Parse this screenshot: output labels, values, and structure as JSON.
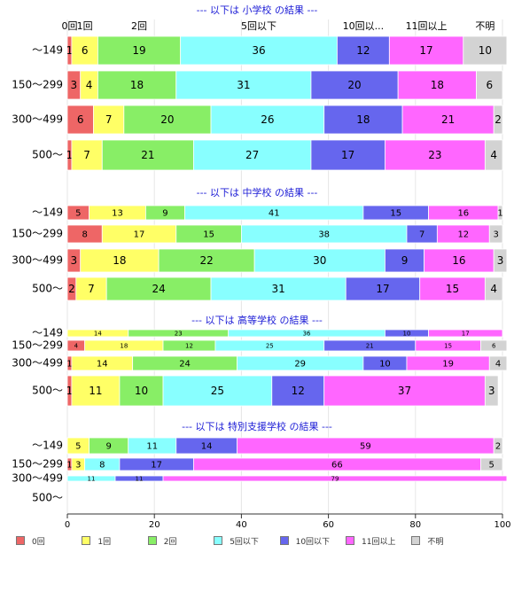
{
  "chart_data": {
    "type": "bar",
    "orientation": "horizontal",
    "stacked": true,
    "xlim": [
      0,
      100
    ],
    "x_ticks": [
      "0",
      "20",
      "40",
      "60",
      "80",
      "100"
    ],
    "legend_position": "bottom",
    "categories": [
      "0回",
      "1回",
      "2回",
      "5回以下",
      "10回以下",
      "11回以上",
      "不明"
    ],
    "colors": [
      "#ee6666",
      "#ffff66",
      "#88ee66",
      "#88ffff",
      "#6666ee",
      "#ff66ff",
      "#d3d3d3"
    ],
    "top_labels": [
      "0回",
      "1回",
      "2回",
      "5回以下",
      "10回以...",
      "11回以上",
      "不明"
    ],
    "panels": [
      {
        "title": "--- 以下は 小学校 の結果 ---",
        "rows": [
          {
            "label": "～149",
            "values": [
              1,
              6,
              19,
              36,
              12,
              17,
              10
            ]
          },
          {
            "label": "150～299",
            "values": [
              3,
              4,
              18,
              31,
              20,
              18,
              6
            ]
          },
          {
            "label": "300～499",
            "values": [
              6,
              7,
              20,
              26,
              18,
              21,
              2
            ]
          },
          {
            "label": "500～",
            "values": [
              1,
              7,
              21,
              27,
              17,
              23,
              4
            ]
          }
        ]
      },
      {
        "title": "--- 以下は 中学校 の結果 ---",
        "rows": [
          {
            "label": "～149",
            "values": [
              5,
              13,
              9,
              41,
              15,
              16,
              1
            ]
          },
          {
            "label": "150～299",
            "values": [
              8,
              17,
              15,
              38,
              7,
              12,
              3
            ]
          },
          {
            "label": "300～499",
            "values": [
              3,
              18,
              22,
              30,
              9,
              16,
              3
            ]
          },
          {
            "label": "500～",
            "values": [
              2,
              7,
              24,
              31,
              17,
              15,
              4
            ]
          }
        ]
      },
      {
        "title": "--- 以下は 高等学校 の結果 ---",
        "rows": [
          {
            "label": "～149",
            "values": [
              0,
              14,
              23,
              36,
              10,
              17,
              0
            ]
          },
          {
            "label": "150～299",
            "values": [
              4,
              18,
              12,
              25,
              21,
              15,
              6
            ]
          },
          {
            "label": "300～499",
            "values": [
              1,
              14,
              24,
              29,
              10,
              19,
              4
            ]
          },
          {
            "label": "500～",
            "values": [
              1,
              11,
              10,
              25,
              12,
              37,
              3
            ]
          }
        ]
      },
      {
        "title": "--- 以下は 特別支援学校 の結果 ---",
        "rows": [
          {
            "label": "～149",
            "values": [
              0,
              5,
              9,
              11,
              14,
              59,
              2
            ]
          },
          {
            "label": "150～299",
            "values": [
              1,
              3,
              0,
              8,
              17,
              66,
              5
            ]
          },
          {
            "label": "300～499",
            "values": [
              0,
              0,
              0,
              11,
              11,
              79,
              0
            ]
          },
          {
            "label": "500～",
            "values": []
          }
        ]
      }
    ]
  }
}
